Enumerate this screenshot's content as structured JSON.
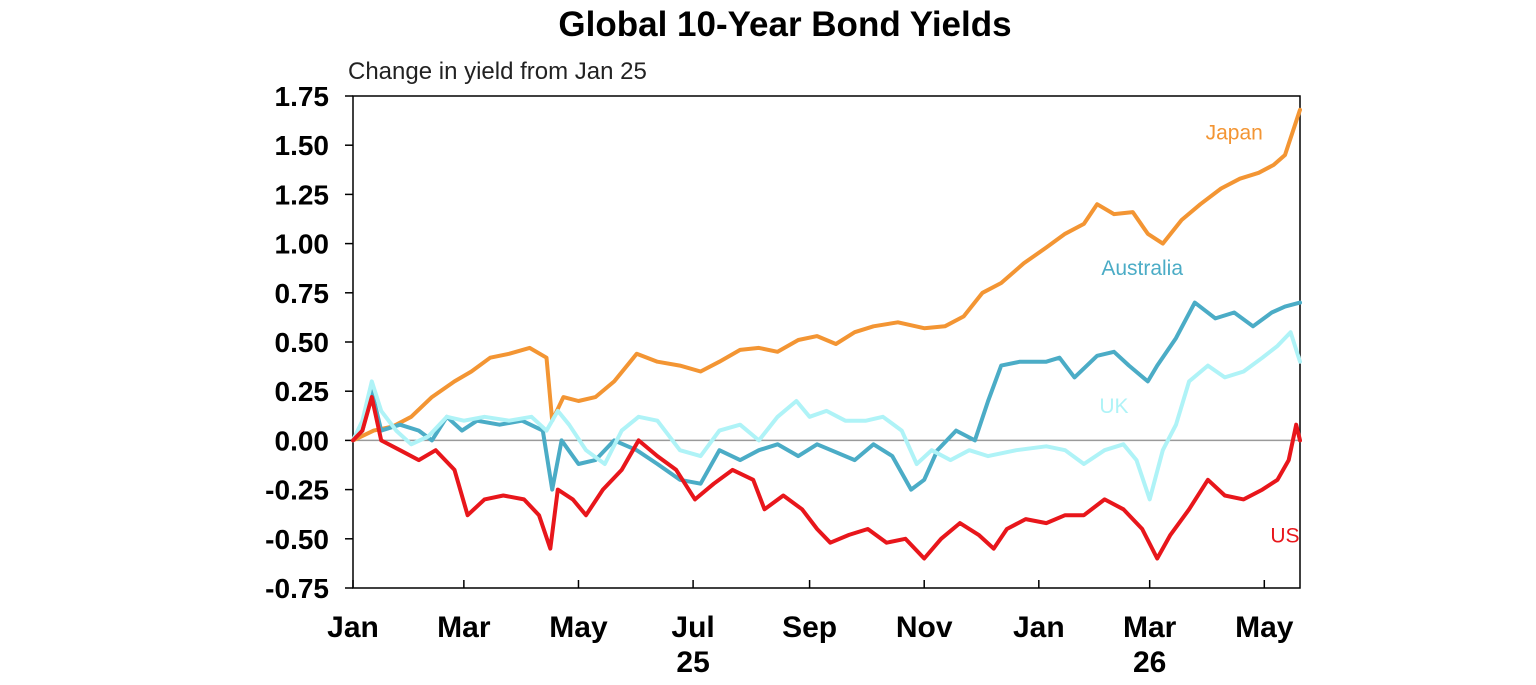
{
  "chart_data": {
    "type": "line",
    "title": "Global 10-Year Bond Yields",
    "subtitle": "Change in yield from Jan 25",
    "xlabel": "",
    "ylabel": "",
    "ylim": [
      -0.75,
      1.75
    ],
    "y_ticks": [
      "1.75",
      "1.50",
      "1.25",
      "1.00",
      "0.75",
      "0.50",
      "0.25",
      "0.00",
      "-0.25",
      "-0.50",
      "-0.75"
    ],
    "x_range": [
      "2025-01-01",
      "2026-05-20"
    ],
    "x_ticks": [
      {
        "label": "Jan",
        "date": "2025-01-01"
      },
      {
        "label": "Mar",
        "date": "2025-03-01"
      },
      {
        "label": "May",
        "date": "2025-05-01"
      },
      {
        "label": "Jul",
        "date": "2025-07-01"
      },
      {
        "label": "Sep",
        "date": "2025-09-01"
      },
      {
        "label": "Nov",
        "date": "2025-11-01"
      },
      {
        "label": "Jan",
        "date": "2026-01-01"
      },
      {
        "label": "Mar",
        "date": "2026-03-01"
      },
      {
        "label": "May",
        "date": "2026-05-01"
      }
    ],
    "year_labels": [
      {
        "label": "25",
        "date": "2025-07-01"
      },
      {
        "label": "26",
        "date": "2026-03-01"
      }
    ],
    "zero_line": true,
    "grid": false,
    "series": [
      {
        "name": "Japan",
        "color": "#F39533",
        "points": [
          [
            "2025-01-01",
            0.0
          ],
          [
            "2025-01-12",
            0.05
          ],
          [
            "2025-01-22",
            0.07
          ],
          [
            "2025-02-01",
            0.12
          ],
          [
            "2025-02-12",
            0.22
          ],
          [
            "2025-02-24",
            0.3
          ],
          [
            "2025-03-05",
            0.35
          ],
          [
            "2025-03-15",
            0.42
          ],
          [
            "2025-03-25",
            0.44
          ],
          [
            "2025-04-05",
            0.47
          ],
          [
            "2025-04-14",
            0.42
          ],
          [
            "2025-04-17",
            0.1
          ],
          [
            "2025-04-23",
            0.22
          ],
          [
            "2025-05-01",
            0.2
          ],
          [
            "2025-05-10",
            0.22
          ],
          [
            "2025-05-20",
            0.3
          ],
          [
            "2025-06-01",
            0.44
          ],
          [
            "2025-06-12",
            0.4
          ],
          [
            "2025-06-24",
            0.38
          ],
          [
            "2025-07-05",
            0.35
          ],
          [
            "2025-07-15",
            0.4
          ],
          [
            "2025-07-26",
            0.46
          ],
          [
            "2025-08-05",
            0.47
          ],
          [
            "2025-08-15",
            0.45
          ],
          [
            "2025-08-26",
            0.51
          ],
          [
            "2025-09-05",
            0.53
          ],
          [
            "2025-09-15",
            0.49
          ],
          [
            "2025-09-25",
            0.55
          ],
          [
            "2025-10-05",
            0.58
          ],
          [
            "2025-10-18",
            0.6
          ],
          [
            "2025-11-01",
            0.57
          ],
          [
            "2025-11-12",
            0.58
          ],
          [
            "2025-11-22",
            0.63
          ],
          [
            "2025-12-02",
            0.75
          ],
          [
            "2025-12-12",
            0.8
          ],
          [
            "2025-12-24",
            0.9
          ],
          [
            "2026-01-05",
            0.98
          ],
          [
            "2026-01-15",
            1.05
          ],
          [
            "2026-01-25",
            1.1
          ],
          [
            "2026-02-01",
            1.2
          ],
          [
            "2026-02-10",
            1.15
          ],
          [
            "2026-02-20",
            1.16
          ],
          [
            "2026-02-28",
            1.05
          ],
          [
            "2026-03-08",
            1.0
          ],
          [
            "2026-03-18",
            1.12
          ],
          [
            "2026-03-28",
            1.2
          ],
          [
            "2026-04-08",
            1.28
          ],
          [
            "2026-04-18",
            1.33
          ],
          [
            "2026-04-28",
            1.36
          ],
          [
            "2026-05-06",
            1.4
          ],
          [
            "2026-05-12",
            1.45
          ],
          [
            "2026-05-20",
            1.68
          ]
        ]
      },
      {
        "name": "Australia",
        "color": "#4BACC6",
        "points": [
          [
            "2025-01-01",
            0.0
          ],
          [
            "2025-01-06",
            0.05
          ],
          [
            "2025-01-11",
            0.25
          ],
          [
            "2025-01-16",
            0.05
          ],
          [
            "2025-01-26",
            0.08
          ],
          [
            "2025-02-05",
            0.05
          ],
          [
            "2025-02-12",
            0.0
          ],
          [
            "2025-02-20",
            0.12
          ],
          [
            "2025-02-28",
            0.05
          ],
          [
            "2025-03-08",
            0.1
          ],
          [
            "2025-03-20",
            0.08
          ],
          [
            "2025-04-01",
            0.1
          ],
          [
            "2025-04-12",
            0.05
          ],
          [
            "2025-04-17",
            -0.25
          ],
          [
            "2025-04-22",
            0.0
          ],
          [
            "2025-05-01",
            -0.12
          ],
          [
            "2025-05-10",
            -0.1
          ],
          [
            "2025-05-20",
            0.0
          ],
          [
            "2025-06-01",
            -0.05
          ],
          [
            "2025-06-12",
            -0.12
          ],
          [
            "2025-06-24",
            -0.2
          ],
          [
            "2025-07-05",
            -0.22
          ],
          [
            "2025-07-15",
            -0.05
          ],
          [
            "2025-07-26",
            -0.1
          ],
          [
            "2025-08-05",
            -0.05
          ],
          [
            "2025-08-15",
            -0.02
          ],
          [
            "2025-08-26",
            -0.08
          ],
          [
            "2025-09-05",
            -0.02
          ],
          [
            "2025-09-15",
            -0.06
          ],
          [
            "2025-09-25",
            -0.1
          ],
          [
            "2025-10-05",
            -0.02
          ],
          [
            "2025-10-15",
            -0.08
          ],
          [
            "2025-10-25",
            -0.25
          ],
          [
            "2025-11-01",
            -0.2
          ],
          [
            "2025-11-08",
            -0.05
          ],
          [
            "2025-11-18",
            0.05
          ],
          [
            "2025-11-28",
            0.0
          ],
          [
            "2025-12-05",
            0.2
          ],
          [
            "2025-12-12",
            0.38
          ],
          [
            "2025-12-22",
            0.4
          ],
          [
            "2026-01-05",
            0.4
          ],
          [
            "2026-01-12",
            0.42
          ],
          [
            "2026-01-20",
            0.32
          ],
          [
            "2026-02-01",
            0.43
          ],
          [
            "2026-02-10",
            0.45
          ],
          [
            "2026-02-18",
            0.38
          ],
          [
            "2026-02-28",
            0.3
          ],
          [
            "2026-03-05",
            0.38
          ],
          [
            "2026-03-15",
            0.52
          ],
          [
            "2026-03-25",
            0.7
          ],
          [
            "2026-04-05",
            0.62
          ],
          [
            "2026-04-15",
            0.65
          ],
          [
            "2026-04-25",
            0.58
          ],
          [
            "2026-05-05",
            0.65
          ],
          [
            "2026-05-12",
            0.68
          ],
          [
            "2026-05-20",
            0.7
          ]
        ]
      },
      {
        "name": "UK",
        "color": "#AFF3F7",
        "points": [
          [
            "2025-01-01",
            0.0
          ],
          [
            "2025-01-06",
            0.1
          ],
          [
            "2025-01-11",
            0.3
          ],
          [
            "2025-01-16",
            0.15
          ],
          [
            "2025-01-24",
            0.05
          ],
          [
            "2025-02-01",
            -0.02
          ],
          [
            "2025-02-10",
            0.02
          ],
          [
            "2025-02-20",
            0.12
          ],
          [
            "2025-03-01",
            0.1
          ],
          [
            "2025-03-12",
            0.12
          ],
          [
            "2025-03-25",
            0.1
          ],
          [
            "2025-04-06",
            0.12
          ],
          [
            "2025-04-14",
            0.05
          ],
          [
            "2025-04-20",
            0.15
          ],
          [
            "2025-04-26",
            0.08
          ],
          [
            "2025-05-05",
            -0.05
          ],
          [
            "2025-05-15",
            -0.12
          ],
          [
            "2025-05-24",
            0.05
          ],
          [
            "2025-06-02",
            0.12
          ],
          [
            "2025-06-12",
            0.1
          ],
          [
            "2025-06-24",
            -0.05
          ],
          [
            "2025-07-05",
            -0.08
          ],
          [
            "2025-07-15",
            0.05
          ],
          [
            "2025-07-26",
            0.08
          ],
          [
            "2025-08-05",
            0.0
          ],
          [
            "2025-08-15",
            0.12
          ],
          [
            "2025-08-25",
            0.2
          ],
          [
            "2025-09-01",
            0.12
          ],
          [
            "2025-09-10",
            0.15
          ],
          [
            "2025-09-20",
            0.1
          ],
          [
            "2025-10-01",
            0.1
          ],
          [
            "2025-10-10",
            0.12
          ],
          [
            "2025-10-20",
            0.05
          ],
          [
            "2025-10-28",
            -0.12
          ],
          [
            "2025-11-05",
            -0.05
          ],
          [
            "2025-11-15",
            -0.1
          ],
          [
            "2025-11-25",
            -0.05
          ],
          [
            "2025-12-05",
            -0.08
          ],
          [
            "2025-12-20",
            -0.05
          ],
          [
            "2026-01-05",
            -0.03
          ],
          [
            "2026-01-15",
            -0.05
          ],
          [
            "2026-01-25",
            -0.12
          ],
          [
            "2026-02-05",
            -0.05
          ],
          [
            "2026-02-15",
            -0.02
          ],
          [
            "2026-02-22",
            -0.1
          ],
          [
            "2026-03-01",
            -0.3
          ],
          [
            "2026-03-08",
            -0.05
          ],
          [
            "2026-03-15",
            0.08
          ],
          [
            "2026-03-22",
            0.3
          ],
          [
            "2026-04-01",
            0.38
          ],
          [
            "2026-04-10",
            0.32
          ],
          [
            "2026-04-20",
            0.35
          ],
          [
            "2026-04-30",
            0.42
          ],
          [
            "2026-05-08",
            0.48
          ],
          [
            "2026-05-15",
            0.55
          ],
          [
            "2026-05-20",
            0.4
          ]
        ]
      },
      {
        "name": "US",
        "color": "#E8161B",
        "points": [
          [
            "2025-01-01",
            0.0
          ],
          [
            "2025-01-06",
            0.05
          ],
          [
            "2025-01-11",
            0.22
          ],
          [
            "2025-01-16",
            0.0
          ],
          [
            "2025-01-26",
            -0.05
          ],
          [
            "2025-02-05",
            -0.1
          ],
          [
            "2025-02-14",
            -0.05
          ],
          [
            "2025-02-24",
            -0.15
          ],
          [
            "2025-03-03",
            -0.38
          ],
          [
            "2025-03-12",
            -0.3
          ],
          [
            "2025-03-22",
            -0.28
          ],
          [
            "2025-04-02",
            -0.3
          ],
          [
            "2025-04-10",
            -0.38
          ],
          [
            "2025-04-16",
            -0.55
          ],
          [
            "2025-04-20",
            -0.25
          ],
          [
            "2025-04-28",
            -0.3
          ],
          [
            "2025-05-05",
            -0.38
          ],
          [
            "2025-05-14",
            -0.25
          ],
          [
            "2025-05-24",
            -0.15
          ],
          [
            "2025-06-02",
            0.0
          ],
          [
            "2025-06-12",
            -0.08
          ],
          [
            "2025-06-22",
            -0.15
          ],
          [
            "2025-07-02",
            -0.3
          ],
          [
            "2025-07-12",
            -0.22
          ],
          [
            "2025-07-22",
            -0.15
          ],
          [
            "2025-08-02",
            -0.2
          ],
          [
            "2025-08-08",
            -0.35
          ],
          [
            "2025-08-18",
            -0.28
          ],
          [
            "2025-08-28",
            -0.35
          ],
          [
            "2025-09-05",
            -0.45
          ],
          [
            "2025-09-12",
            -0.52
          ],
          [
            "2025-09-22",
            -0.48
          ],
          [
            "2025-10-02",
            -0.45
          ],
          [
            "2025-10-12",
            -0.52
          ],
          [
            "2025-10-22",
            -0.5
          ],
          [
            "2025-11-01",
            -0.6
          ],
          [
            "2025-11-10",
            -0.5
          ],
          [
            "2025-11-20",
            -0.42
          ],
          [
            "2025-11-30",
            -0.48
          ],
          [
            "2025-12-08",
            -0.55
          ],
          [
            "2025-12-15",
            -0.45
          ],
          [
            "2025-12-25",
            -0.4
          ],
          [
            "2026-01-05",
            -0.42
          ],
          [
            "2026-01-15",
            -0.38
          ],
          [
            "2026-01-25",
            -0.38
          ],
          [
            "2026-02-05",
            -0.3
          ],
          [
            "2026-02-15",
            -0.35
          ],
          [
            "2026-02-25",
            -0.45
          ],
          [
            "2026-03-05",
            -0.6
          ],
          [
            "2026-03-12",
            -0.48
          ],
          [
            "2026-03-22",
            -0.35
          ],
          [
            "2026-04-01",
            -0.2
          ],
          [
            "2026-04-10",
            -0.28
          ],
          [
            "2026-04-20",
            -0.3
          ],
          [
            "2026-04-30",
            -0.25
          ],
          [
            "2026-05-08",
            -0.2
          ],
          [
            "2026-05-14",
            -0.1
          ],
          [
            "2026-05-18",
            0.08
          ],
          [
            "2026-05-20",
            0.0
          ]
        ]
      }
    ]
  }
}
